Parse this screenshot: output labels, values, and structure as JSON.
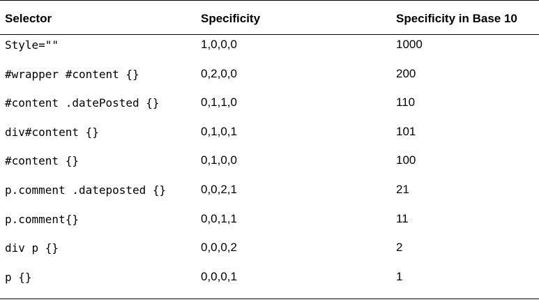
{
  "table": {
    "headers": {
      "selector": "Selector",
      "specificity": "Specificity",
      "base10": "Specificity in Base 10"
    },
    "rows": [
      {
        "selector": "Style=\"\"",
        "specificity": "1,0,0,0",
        "base10": "1000"
      },
      {
        "selector": "#wrapper #content {}",
        "specificity": "0,2,0,0",
        "base10": "200"
      },
      {
        "selector": "#content .datePosted {}",
        "specificity": "0,1,1,0",
        "base10": "110"
      },
      {
        "selector": "div#content {}",
        "specificity": "0,1,0,1",
        "base10": "101"
      },
      {
        "selector": "#content {}",
        "specificity": "0,1,0,0",
        "base10": "100"
      },
      {
        "selector": "p.comment .dateposted {}",
        "specificity": "0,0,2,1",
        "base10": "21"
      },
      {
        "selector": "p.comment{}",
        "specificity": "0,0,1,1",
        "base10": "11"
      },
      {
        "selector": "div p {}",
        "specificity": "0,0,0,2",
        "base10": "2"
      },
      {
        "selector": "p {}",
        "specificity": "0,0,0,1",
        "base10": "1"
      }
    ]
  }
}
